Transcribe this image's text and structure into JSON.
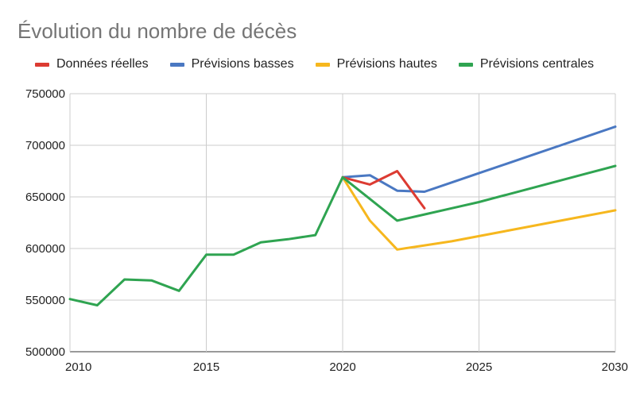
{
  "chart_data": {
    "type": "line",
    "title": "Évolution du nombre de décès",
    "xlabel": "",
    "ylabel": "",
    "xlim": [
      2010,
      2030
    ],
    "ylim": [
      500000,
      750000
    ],
    "x_ticks": [
      2010,
      2015,
      2020,
      2025,
      2030
    ],
    "y_ticks": [
      500000,
      550000,
      600000,
      650000,
      700000,
      750000
    ],
    "grid": true,
    "legend_position": "top",
    "series": [
      {
        "name": "Données réelles",
        "color": "#dc3b32",
        "points": [
          [
            2020,
            669000
          ],
          [
            2021,
            662000
          ],
          [
            2022,
            675000
          ],
          [
            2023,
            639000
          ]
        ]
      },
      {
        "name": "Prévisions basses",
        "color": "#4a78c2",
        "points": [
          [
            2020,
            669000
          ],
          [
            2021,
            671000
          ],
          [
            2022,
            656000
          ],
          [
            2023,
            655000
          ],
          [
            2024,
            664000
          ],
          [
            2025,
            673000
          ],
          [
            2026,
            682000
          ],
          [
            2027,
            691000
          ],
          [
            2028,
            700000
          ],
          [
            2029,
            709000
          ],
          [
            2030,
            718000
          ]
        ]
      },
      {
        "name": "Prévisions hautes",
        "color": "#f6b71e",
        "points": [
          [
            2020,
            669000
          ],
          [
            2021,
            627000
          ],
          [
            2022,
            599000
          ],
          [
            2023,
            603000
          ],
          [
            2024,
            607000
          ],
          [
            2025,
            612000
          ],
          [
            2026,
            617000
          ],
          [
            2027,
            622000
          ],
          [
            2028,
            627000
          ],
          [
            2029,
            632000
          ],
          [
            2030,
            637000
          ]
        ]
      },
      {
        "name": "Prévisions centrales",
        "color": "#2fa451",
        "points": [
          [
            2010,
            551000
          ],
          [
            2011,
            545000
          ],
          [
            2012,
            570000
          ],
          [
            2013,
            569000
          ],
          [
            2014,
            559000
          ],
          [
            2015,
            594000
          ],
          [
            2016,
            594000
          ],
          [
            2017,
            606000
          ],
          [
            2018,
            609000
          ],
          [
            2019,
            613000
          ],
          [
            2020,
            669000
          ],
          [
            2021,
            648000
          ],
          [
            2022,
            627000
          ],
          [
            2023,
            633000
          ],
          [
            2024,
            639000
          ],
          [
            2025,
            645000
          ],
          [
            2026,
            652000
          ],
          [
            2027,
            659000
          ],
          [
            2028,
            666000
          ],
          [
            2029,
            673000
          ],
          [
            2030,
            680000
          ]
        ]
      }
    ]
  }
}
